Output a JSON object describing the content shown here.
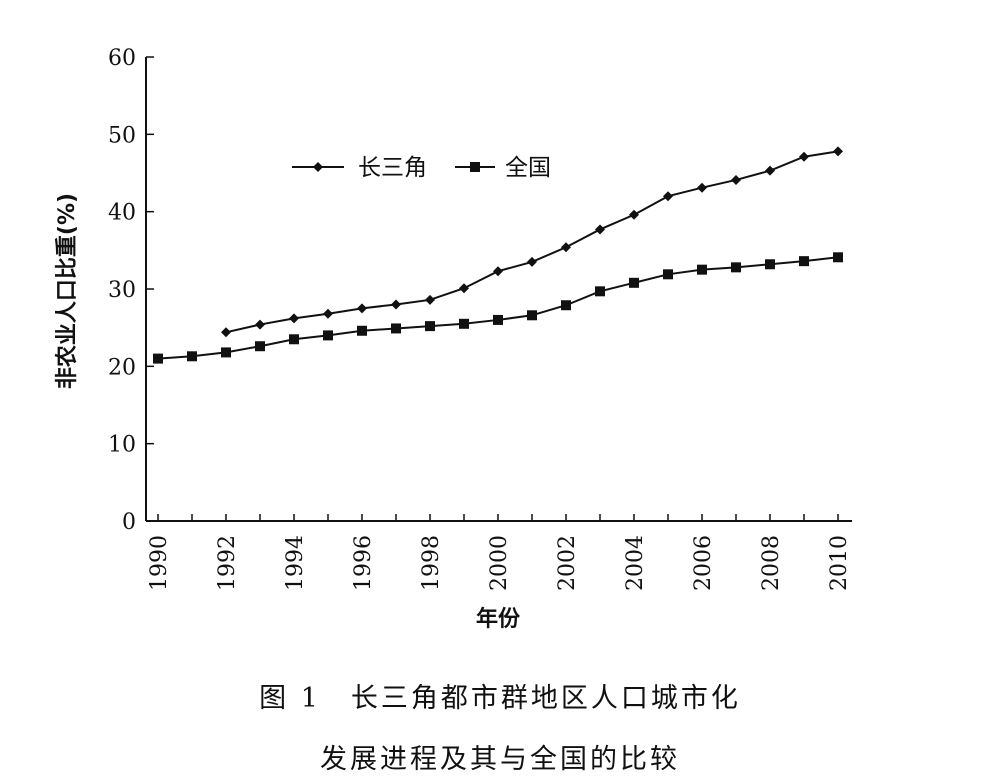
{
  "chart_data": {
    "type": "line",
    "xlabel": "年份",
    "ylabel": "非农业人口比重(%)",
    "xlim": [
      1990,
      2010
    ],
    "ylim": [
      0,
      60
    ],
    "x_ticks": [
      1990,
      1992,
      1994,
      1996,
      1998,
      2000,
      2002,
      2004,
      2006,
      2008,
      2010
    ],
    "y_ticks": [
      0,
      10,
      20,
      30,
      40,
      50,
      60
    ],
    "grid": false,
    "legend_position": "upper-left",
    "series": [
      {
        "name": "长三角",
        "marker": "diamond",
        "x": [
          1992,
          1993,
          1994,
          1995,
          1996,
          1997,
          1998,
          1999,
          2000,
          2001,
          2002,
          2003,
          2004,
          2005,
          2006,
          2007,
          2008,
          2009,
          2010
        ],
        "values": [
          24.4,
          25.4,
          26.2,
          26.8,
          27.5,
          28.0,
          28.6,
          30.1,
          32.3,
          33.5,
          35.4,
          37.7,
          39.6,
          42.0,
          43.1,
          44.1,
          45.3,
          47.1,
          47.8
        ]
      },
      {
        "name": "全国",
        "marker": "square",
        "x": [
          1990,
          1991,
          1992,
          1993,
          1994,
          1995,
          1996,
          1997,
          1998,
          1999,
          2000,
          2001,
          2002,
          2003,
          2004,
          2005,
          2006,
          2007,
          2008,
          2009,
          2010
        ],
        "values": [
          21.0,
          21.3,
          21.8,
          22.6,
          23.5,
          24.0,
          24.6,
          24.9,
          25.2,
          25.5,
          26.0,
          26.6,
          27.9,
          29.7,
          30.8,
          31.9,
          32.5,
          32.8,
          33.2,
          33.6,
          34.1
        ]
      }
    ]
  },
  "caption": {
    "line1": "图 1　长三角都市群地区人口城市化",
    "line2": "发展进程及其与全国的比较"
  }
}
